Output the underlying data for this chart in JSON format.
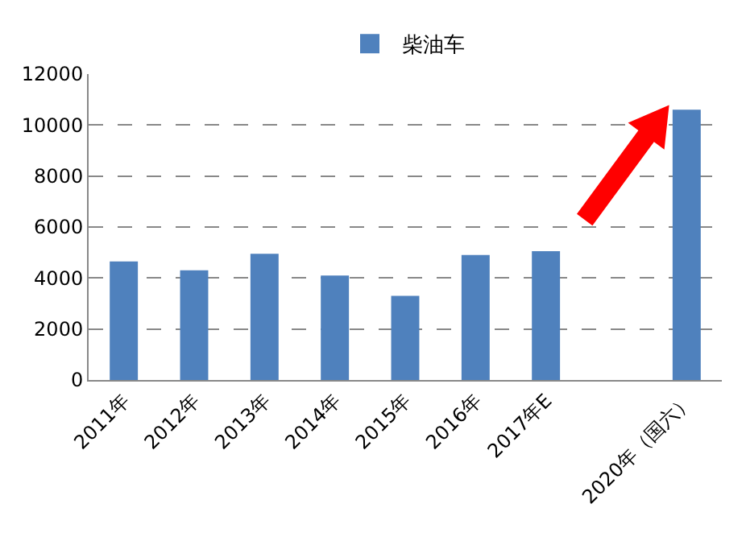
{
  "chart_data": {
    "type": "bar",
    "categories": [
      "2011年",
      "2012年",
      "2013年",
      "2014年",
      "2015年",
      "2016年",
      "2017年E",
      null,
      "2020年（国六）"
    ],
    "series": [
      {
        "name": "柴油车",
        "color": "#4f81bd",
        "values": [
          4650,
          4300,
          4950,
          4100,
          3300,
          4900,
          5050,
          null,
          10600
        ]
      }
    ],
    "ylim": [
      0,
      12000
    ],
    "yticks": [
      0,
      2000,
      4000,
      6000,
      8000,
      10000,
      12000
    ],
    "grid": "y",
    "legend": "top"
  }
}
